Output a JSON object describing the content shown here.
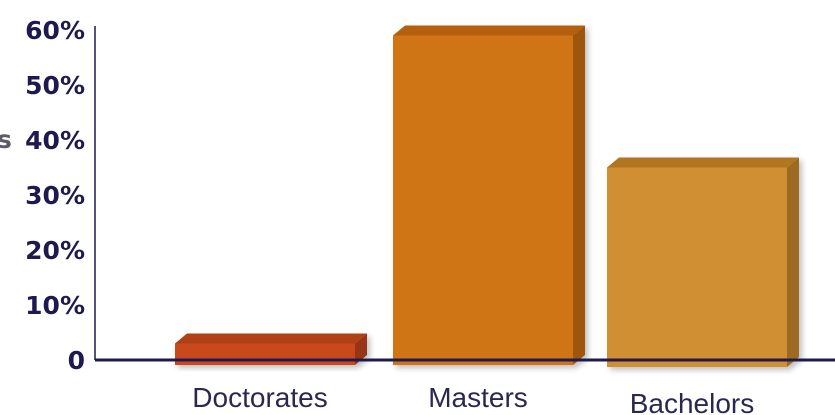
{
  "chart_data": {
    "type": "bar",
    "style": "3d",
    "categories": [
      "Doctorates",
      "Masters",
      "Bachelors"
    ],
    "values": [
      3,
      59,
      35
    ],
    "ylim": [
      0,
      60
    ],
    "yticks": [
      "0",
      "10%",
      "20%",
      "30%",
      "40%",
      "50%",
      "60%"
    ],
    "ytick_values": [
      0,
      10,
      20,
      30,
      40,
      50,
      60
    ],
    "ylabel_visible_fragment": "s",
    "grid": false,
    "legend": "none",
    "colors": {
      "front": [
        "#c94a1c",
        "#cf7516",
        "#d08f33"
      ],
      "top": [
        "#b03f14",
        "#b4600f",
        "#b27524"
      ],
      "side": [
        "#973612",
        "#9e5610",
        "#9e6a22"
      ],
      "axis": "#1e1a4f"
    }
  }
}
